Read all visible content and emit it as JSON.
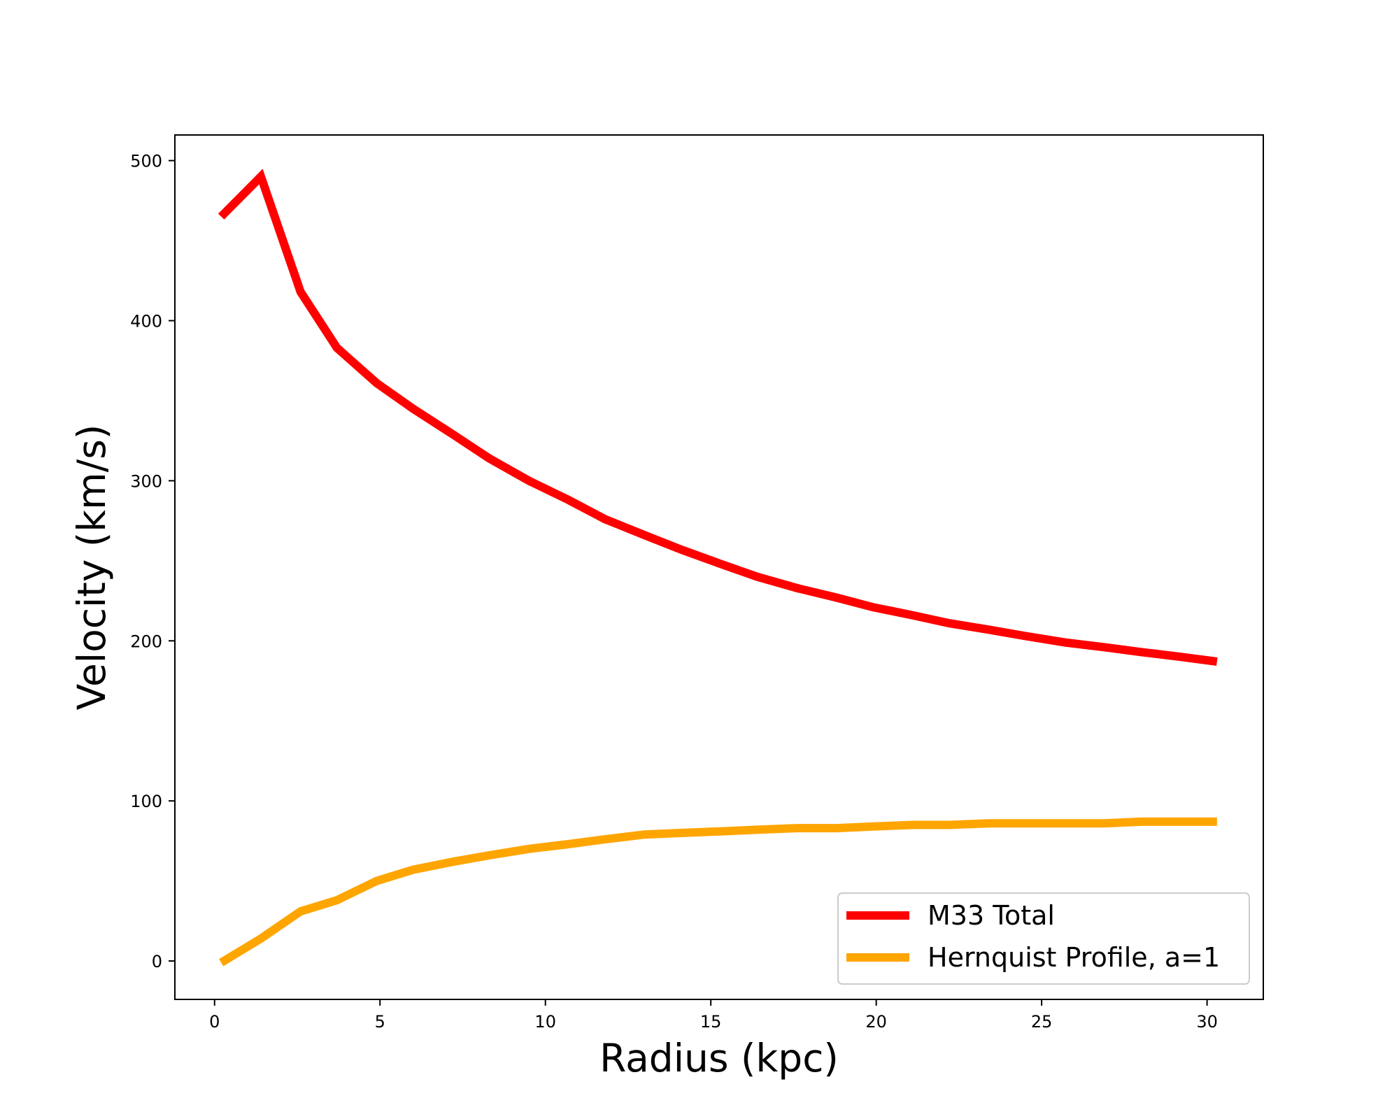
{
  "chart_data": {
    "type": "line",
    "title": "",
    "xlabel": "Radius (kpc)",
    "ylabel": "Velocity (km/s)",
    "xlim": [
      -1.2,
      31.7
    ],
    "ylim": [
      -24,
      516
    ],
    "xticks": [
      0,
      5,
      10,
      15,
      20,
      25,
      30
    ],
    "yticks": [
      0,
      100,
      200,
      300,
      400,
      500
    ],
    "xtick_labels": [
      "0",
      "5",
      "10",
      "15",
      "20",
      "25",
      "30"
    ],
    "ytick_labels": [
      "0",
      "100",
      "200",
      "300",
      "400",
      "500"
    ],
    "grid": false,
    "legend_position": "lower-right",
    "series": [
      {
        "name": "M33 Total",
        "color": "#ff0000",
        "x": [
          0.2,
          1.4,
          2.6,
          3.7,
          4.9,
          6.0,
          7.2,
          8.3,
          9.5,
          10.7,
          11.8,
          13.0,
          14.1,
          15.3,
          16.4,
          17.6,
          18.8,
          19.9,
          21.1,
          22.2,
          23.4,
          24.5,
          25.7,
          26.9,
          28.0,
          29.2,
          30.3
        ],
        "y": [
          465,
          490,
          418,
          383,
          361,
          345,
          329,
          314,
          300,
          288,
          276,
          266,
          257,
          248,
          240,
          233,
          227,
          221,
          216,
          211,
          207,
          203,
          199,
          196,
          193,
          190,
          187
        ]
      },
      {
        "name": "Hernquist Profile, a=1",
        "color": "#ffa500",
        "x": [
          0.2,
          1.4,
          2.6,
          3.7,
          4.9,
          6.0,
          7.2,
          8.3,
          9.5,
          10.7,
          11.8,
          13.0,
          14.1,
          15.3,
          16.4,
          17.6,
          18.8,
          19.9,
          21.1,
          22.2,
          23.4,
          24.5,
          25.7,
          26.9,
          28.0,
          29.2,
          30.3
        ],
        "y": [
          -1,
          14,
          31,
          38,
          50,
          57,
          62,
          66,
          70,
          73,
          76,
          79,
          80,
          81,
          82,
          83,
          83,
          84,
          85,
          85,
          86,
          86,
          86,
          86,
          87,
          87,
          87
        ]
      }
    ]
  }
}
